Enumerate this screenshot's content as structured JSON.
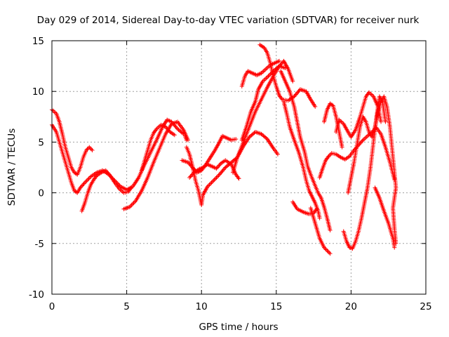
{
  "chart_data": {
    "type": "scatter",
    "title": "Day 029 of 2014, Sidereal Day-to-day VTEC variation (SDTVAR) for receiver nurk",
    "xlabel": "GPS time / hours",
    "ylabel": "SDTVAR / TECUs",
    "xlim": [
      0,
      25
    ],
    "ylim": [
      -10,
      15
    ],
    "xticks": [
      0,
      5,
      10,
      15,
      20,
      25
    ],
    "yticks": [
      -10,
      -5,
      0,
      5,
      10,
      15
    ],
    "grid": true,
    "marker": "+",
    "color": "#ff0000",
    "tracks": [
      {
        "points": [
          [
            0.0,
            8.2
          ],
          [
            0.3,
            7.8
          ],
          [
            0.5,
            7.0
          ],
          [
            0.7,
            5.8
          ],
          [
            0.9,
            4.5
          ],
          [
            1.1,
            3.5
          ],
          [
            1.3,
            2.5
          ],
          [
            1.5,
            2.0
          ],
          [
            1.7,
            1.8
          ],
          [
            1.9,
            2.5
          ],
          [
            2.1,
            3.5
          ],
          [
            2.3,
            4.2
          ],
          [
            2.5,
            4.5
          ],
          [
            2.7,
            4.2
          ]
        ]
      },
      {
        "points": [
          [
            0.0,
            6.7
          ],
          [
            0.3,
            6.0
          ],
          [
            0.5,
            5.0
          ],
          [
            0.7,
            4.0
          ],
          [
            0.9,
            3.0
          ],
          [
            1.1,
            2.0
          ],
          [
            1.3,
            1.0
          ],
          [
            1.5,
            0.2
          ],
          [
            1.7,
            0.0
          ],
          [
            1.9,
            0.5
          ],
          [
            2.2,
            1.0
          ],
          [
            2.6,
            1.6
          ],
          [
            3.0,
            2.0
          ],
          [
            3.4,
            2.2
          ],
          [
            3.8,
            1.8
          ],
          [
            4.2,
            1.2
          ],
          [
            4.6,
            0.6
          ],
          [
            5.0,
            0.3
          ],
          [
            5.4,
            0.6
          ],
          [
            5.8,
            1.5
          ],
          [
            6.2,
            2.8
          ],
          [
            6.6,
            4.0
          ],
          [
            7.0,
            5.2
          ],
          [
            7.4,
            6.5
          ],
          [
            7.7,
            7.2
          ],
          [
            8.0,
            7.0
          ],
          [
            8.4,
            6.3
          ],
          [
            8.8,
            5.8
          ]
        ]
      },
      {
        "points": [
          [
            2.0,
            -1.8
          ],
          [
            2.2,
            -1.0
          ],
          [
            2.4,
            0.0
          ],
          [
            2.6,
            0.8
          ],
          [
            2.8,
            1.3
          ],
          [
            3.0,
            1.7
          ],
          [
            3.3,
            2.0
          ],
          [
            3.6,
            2.2
          ],
          [
            3.9,
            1.7
          ],
          [
            4.2,
            1.0
          ],
          [
            4.5,
            0.4
          ],
          [
            4.8,
            0.0
          ],
          [
            5.1,
            0.1
          ],
          [
            5.3,
            0.5
          ]
        ]
      },
      {
        "points": [
          [
            4.8,
            -1.6
          ],
          [
            5.2,
            -1.4
          ],
          [
            5.6,
            -0.8
          ],
          [
            6.0,
            0.2
          ],
          [
            6.4,
            1.5
          ],
          [
            6.8,
            3.0
          ],
          [
            7.2,
            4.4
          ],
          [
            7.6,
            5.8
          ],
          [
            8.0,
            6.8
          ],
          [
            8.4,
            7.0
          ],
          [
            8.8,
            6.2
          ],
          [
            9.1,
            5.2
          ]
        ]
      },
      {
        "points": [
          [
            6.0,
            2.2
          ],
          [
            6.2,
            3.2
          ],
          [
            6.4,
            4.2
          ],
          [
            6.6,
            5.2
          ],
          [
            6.8,
            5.9
          ],
          [
            7.0,
            6.3
          ],
          [
            7.3,
            6.7
          ],
          [
            7.6,
            6.5
          ],
          [
            7.9,
            6.0
          ],
          [
            8.2,
            5.7
          ]
        ]
      },
      {
        "points": [
          [
            9.0,
            4.5
          ],
          [
            9.2,
            3.8
          ],
          [
            9.4,
            2.6
          ],
          [
            9.6,
            1.2
          ],
          [
            9.8,
            0.2
          ],
          [
            10.0,
            -1.2
          ],
          [
            10.1,
            -0.2
          ],
          [
            10.4,
            0.6
          ],
          [
            10.8,
            1.2
          ],
          [
            11.2,
            1.8
          ],
          [
            11.6,
            2.5
          ],
          [
            12.0,
            3.0
          ],
          [
            12.4,
            3.5
          ],
          [
            12.8,
            4.6
          ],
          [
            13.2,
            5.5
          ],
          [
            13.6,
            6.0
          ],
          [
            14.0,
            5.8
          ],
          [
            14.4,
            5.3
          ],
          [
            14.8,
            4.4
          ],
          [
            15.1,
            3.8
          ]
        ]
      },
      {
        "points": [
          [
            8.7,
            3.2
          ],
          [
            9.1,
            3.0
          ],
          [
            9.4,
            2.5
          ],
          [
            9.7,
            2.0
          ],
          [
            10.0,
            2.2
          ],
          [
            10.3,
            2.8
          ],
          [
            10.6,
            3.5
          ],
          [
            10.9,
            4.2
          ],
          [
            11.2,
            5.0
          ],
          [
            11.4,
            5.6
          ],
          [
            11.7,
            5.4
          ],
          [
            12.0,
            5.2
          ],
          [
            12.3,
            5.3
          ]
        ]
      },
      {
        "points": [
          [
            8.9,
            5.6
          ],
          [
            9.0,
            5.2
          ]
        ]
      },
      {
        "points": [
          [
            9.2,
            1.5
          ],
          [
            9.5,
            2.0
          ],
          [
            9.8,
            2.3
          ],
          [
            10.1,
            2.5
          ],
          [
            10.4,
            2.8
          ],
          [
            10.7,
            2.6
          ],
          [
            11.0,
            2.4
          ],
          [
            11.3,
            2.9
          ],
          [
            11.6,
            3.2
          ],
          [
            12.0,
            2.8
          ],
          [
            12.3,
            1.8
          ],
          [
            12.5,
            1.4
          ]
        ]
      },
      {
        "points": [
          [
            12.1,
            2.0
          ],
          [
            12.4,
            3.5
          ],
          [
            12.8,
            5.0
          ],
          [
            13.2,
            6.5
          ],
          [
            13.6,
            8.0
          ],
          [
            14.0,
            9.2
          ],
          [
            14.4,
            10.4
          ],
          [
            14.8,
            11.5
          ],
          [
            15.2,
            12.5
          ],
          [
            15.5,
            13.0
          ],
          [
            15.8,
            12.2
          ],
          [
            16.1,
            11.0
          ]
        ]
      },
      {
        "points": [
          [
            12.7,
            5.2
          ],
          [
            13.0,
            6.5
          ],
          [
            13.3,
            8.0
          ],
          [
            13.6,
            9.0
          ],
          [
            13.8,
            10.2
          ],
          [
            14.1,
            11.0
          ],
          [
            14.4,
            11.4
          ],
          [
            14.8,
            12.0
          ],
          [
            15.2,
            12.5
          ],
          [
            15.6,
            12.3
          ]
        ]
      },
      {
        "points": [
          [
            12.7,
            10.5
          ],
          [
            12.9,
            11.5
          ],
          [
            13.1,
            12.0
          ],
          [
            13.4,
            11.8
          ],
          [
            13.7,
            11.6
          ],
          [
            14.0,
            11.8
          ],
          [
            14.3,
            12.2
          ],
          [
            14.6,
            12.6
          ],
          [
            14.9,
            12.8
          ],
          [
            15.2,
            13.0
          ]
        ]
      },
      {
        "points": [
          [
            13.9,
            14.6
          ],
          [
            14.2,
            14.3
          ],
          [
            14.4,
            13.8
          ],
          [
            14.6,
            12.8
          ],
          [
            14.8,
            11.5
          ],
          [
            15.0,
            10.5
          ],
          [
            15.2,
            9.6
          ],
          [
            15.4,
            9.2
          ],
          [
            15.8,
            9.1
          ],
          [
            16.2,
            9.5
          ],
          [
            16.6,
            10.2
          ],
          [
            17.0,
            10.0
          ],
          [
            17.3,
            9.2
          ],
          [
            17.6,
            8.5
          ]
        ]
      },
      {
        "points": [
          [
            15.5,
            9.0
          ],
          [
            15.7,
            7.8
          ],
          [
            15.9,
            6.5
          ],
          [
            16.2,
            5.2
          ],
          [
            16.5,
            4.0
          ],
          [
            16.8,
            2.5
          ],
          [
            17.0,
            1.2
          ],
          [
            17.2,
            0.2
          ],
          [
            17.4,
            -0.4
          ],
          [
            17.6,
            -1.0
          ],
          [
            17.8,
            -1.8
          ],
          [
            17.9,
            -2.5
          ]
        ]
      },
      {
        "points": [
          [
            15.3,
            12.0
          ],
          [
            15.6,
            11.0
          ],
          [
            15.9,
            10.0
          ],
          [
            16.2,
            8.5
          ],
          [
            16.4,
            7.0
          ],
          [
            16.6,
            5.5
          ],
          [
            16.9,
            4.0
          ],
          [
            17.1,
            2.6
          ],
          [
            17.3,
            1.8
          ],
          [
            17.6,
            0.7
          ],
          [
            17.8,
            0.0
          ],
          [
            18.0,
            -0.5
          ],
          [
            18.2,
            -1.4
          ],
          [
            18.4,
            -2.5
          ],
          [
            18.6,
            -3.7
          ]
        ]
      },
      {
        "points": [
          [
            16.1,
            -0.9
          ],
          [
            16.4,
            -1.6
          ],
          [
            16.8,
            -1.9
          ],
          [
            17.2,
            -2.1
          ],
          [
            17.5,
            -2.0
          ],
          [
            17.7,
            -1.6
          ]
        ]
      },
      {
        "points": [
          [
            17.3,
            -1.5
          ],
          [
            17.6,
            -3.0
          ],
          [
            17.9,
            -4.5
          ],
          [
            18.2,
            -5.4
          ],
          [
            18.6,
            -6.0
          ]
        ]
      },
      {
        "points": [
          [
            17.9,
            1.5
          ],
          [
            18.1,
            2.4
          ],
          [
            18.3,
            3.2
          ],
          [
            18.5,
            3.6
          ],
          [
            18.7,
            3.9
          ],
          [
            19.0,
            3.8
          ],
          [
            19.3,
            3.5
          ],
          [
            19.6,
            3.3
          ],
          [
            19.9,
            3.6
          ],
          [
            20.2,
            4.2
          ],
          [
            20.5,
            4.7
          ],
          [
            20.8,
            5.2
          ],
          [
            21.1,
            5.6
          ],
          [
            21.4,
            6.0
          ],
          [
            21.7,
            6.4
          ],
          [
            22.0,
            5.8
          ],
          [
            22.3,
            4.5
          ],
          [
            22.6,
            3.0
          ],
          [
            22.9,
            1.3
          ]
        ]
      },
      {
        "points": [
          [
            18.2,
            7.0
          ],
          [
            18.4,
            8.2
          ],
          [
            18.6,
            8.8
          ],
          [
            18.8,
            8.6
          ],
          [
            19.0,
            7.5
          ],
          [
            19.2,
            6.0
          ],
          [
            19.4,
            4.5
          ]
        ]
      },
      {
        "points": [
          [
            19.0,
            6.0
          ],
          [
            19.2,
            7.2
          ],
          [
            19.5,
            6.8
          ],
          [
            19.8,
            6.0
          ],
          [
            20.0,
            5.5
          ],
          [
            20.3,
            6.2
          ],
          [
            20.6,
            7.5
          ],
          [
            20.8,
            8.5
          ],
          [
            21.0,
            9.5
          ],
          [
            21.2,
            9.9
          ],
          [
            21.5,
            9.5
          ],
          [
            21.8,
            8.5
          ],
          [
            22.0,
            7.0
          ]
        ]
      },
      {
        "points": [
          [
            19.5,
            -3.8
          ],
          [
            19.7,
            -4.8
          ],
          [
            19.9,
            -5.4
          ],
          [
            20.1,
            -5.5
          ],
          [
            20.3,
            -4.8
          ],
          [
            20.5,
            -3.8
          ],
          [
            20.7,
            -2.5
          ],
          [
            20.9,
            -1.0
          ],
          [
            21.1,
            0.5
          ],
          [
            21.3,
            2.5
          ],
          [
            21.5,
            5.0
          ],
          [
            21.7,
            7.5
          ],
          [
            21.9,
            9.5
          ],
          [
            22.1,
            9.0
          ],
          [
            22.3,
            7.0
          ]
        ]
      },
      {
        "points": [
          [
            19.8,
            0.0
          ],
          [
            20.0,
            1.5
          ],
          [
            20.2,
            3.0
          ],
          [
            20.4,
            4.8
          ],
          [
            20.6,
            6.5
          ],
          [
            20.8,
            7.5
          ],
          [
            21.0,
            7.0
          ],
          [
            21.2,
            6.0
          ],
          [
            21.4,
            5.5
          ],
          [
            21.6,
            6.5
          ],
          [
            21.8,
            8.0
          ],
          [
            22.0,
            9.0
          ],
          [
            22.2,
            9.5
          ],
          [
            22.4,
            8.5
          ],
          [
            22.6,
            6.5
          ],
          [
            22.8,
            3.5
          ],
          [
            23.0,
            0.5
          ],
          [
            22.8,
            -1.5
          ],
          [
            22.9,
            -3.5
          ],
          [
            23.0,
            -5.0
          ]
        ]
      },
      {
        "points": [
          [
            21.6,
            0.5
          ],
          [
            21.9,
            -0.5
          ],
          [
            22.2,
            -1.8
          ],
          [
            22.5,
            -3.0
          ],
          [
            22.8,
            -4.5
          ],
          [
            22.9,
            -5.4
          ]
        ]
      }
    ]
  }
}
